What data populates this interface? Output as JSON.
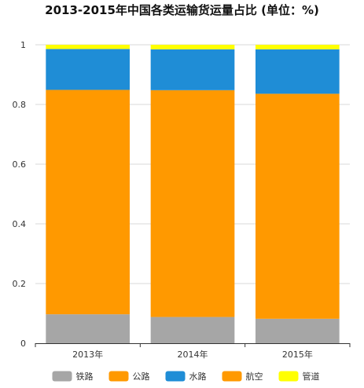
{
  "chart_data": {
    "type": "bar",
    "stacked": true,
    "title": "2013-2015年中国各类运输货运量占比 (单位：%)",
    "categories": [
      "2013年",
      "2014年",
      "2015年"
    ],
    "ylim": [
      0,
      1
    ],
    "yticks": [
      "0",
      "0.2",
      "0.4",
      "0.6",
      "0.8",
      "1"
    ],
    "ytick_values": [
      0,
      0.2,
      0.4,
      0.6,
      0.8,
      1
    ],
    "grid": true,
    "legend_position": "bottom",
    "series": [
      {
        "name": "铁路",
        "color": "#a6a6a6",
        "values": [
          0.097,
          0.088,
          0.082
        ]
      },
      {
        "name": "公路",
        "color": "#ff9900",
        "values": [
          0.752,
          0.76,
          0.754
        ]
      },
      {
        "name": "水路",
        "color": "#1f8dd6",
        "values": [
          0.137,
          0.137,
          0.149
        ]
      },
      {
        "name": "航空",
        "color": "#ff9900",
        "values": [
          0.0002,
          0.0002,
          0.0002
        ]
      },
      {
        "name": "管道",
        "color": "#ffff00",
        "values": [
          0.014,
          0.015,
          0.015
        ]
      }
    ]
  }
}
